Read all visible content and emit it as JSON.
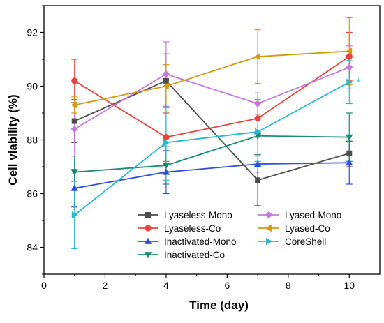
{
  "chart_data": {
    "type": "line",
    "xlabel": "Time (day)",
    "ylabel": "Cell viability (%)",
    "xlim": [
      0,
      11
    ],
    "ylim": [
      83,
      93
    ],
    "xticks": [
      0,
      2,
      4,
      6,
      8,
      10
    ],
    "xtick_labels": [
      "0",
      "2",
      "4",
      "6",
      "8",
      "10"
    ],
    "yticks": [
      84,
      86,
      88,
      90,
      92
    ],
    "ytick_labels": [
      "84",
      "86",
      "88",
      "90",
      "92"
    ],
    "grid": false,
    "legend_position": "bottom-right",
    "x": [
      1,
      4,
      7,
      10
    ],
    "series": [
      {
        "name": "Lyaseless-Mono",
        "color": "#4d4d4d",
        "marker": "square",
        "values": [
          88.7,
          90.2,
          86.5,
          87.5
        ],
        "errors": [
          0.8,
          1.0,
          0.95,
          0.5
        ]
      },
      {
        "name": "Lyaseless-Co",
        "color": "#e8423c",
        "marker": "circle",
        "values": [
          90.2,
          88.1,
          88.8,
          91.1
        ],
        "errors": [
          0.8,
          0.9,
          0.7,
          0.9
        ]
      },
      {
        "name": "Inactivated-Mono",
        "color": "#2e4de0",
        "marker": "triangle-up",
        "values": [
          86.2,
          86.8,
          87.1,
          87.15
        ],
        "errors": [
          0.7,
          0.8,
          0.3,
          0.8
        ]
      },
      {
        "name": "Inactivated-Co",
        "color": "#1a8c72",
        "marker": "triangle-down",
        "values": [
          86.8,
          87.05,
          88.15,
          88.1
        ],
        "errors": [
          0.6,
          0.7,
          0.7,
          0.9
        ]
      },
      {
        "name": "Lyased-Mono",
        "color": "#c678dd",
        "marker": "diamond",
        "values": [
          88.4,
          90.45,
          89.35,
          90.7
        ],
        "errors": [
          1.0,
          1.2,
          0.4,
          0.8
        ]
      },
      {
        "name": "Lyased-Co",
        "color": "#d19a12",
        "marker": "triangle-left",
        "values": [
          89.3,
          90.0,
          91.1,
          91.3
        ],
        "errors": [
          0.3,
          0.8,
          1.0,
          1.25
        ]
      },
      {
        "name": "CoreShell",
        "color": "#26b8d0",
        "marker": "triangle-right",
        "values": [
          85.2,
          87.9,
          88.3,
          90.15
        ],
        "errors": [
          1.25,
          1.4,
          1.1,
          0.8
        ]
      }
    ],
    "annotations": [
      {
        "text": "*",
        "x": 10,
        "y": 90.15,
        "color": "#26d0c8"
      }
    ]
  }
}
